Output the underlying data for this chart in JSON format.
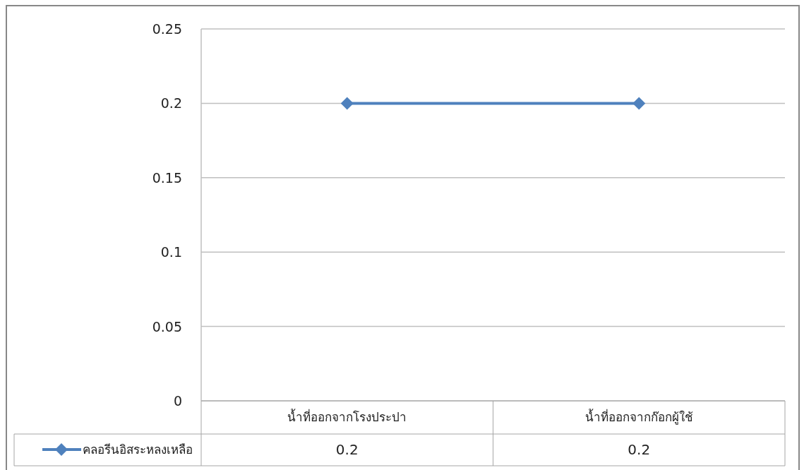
{
  "chart_data": {
    "type": "line",
    "categories": [
      "น้ำที่ออกจากโรงประปา",
      "น้ำที่ออกจากก๊อกผู้ใช้"
    ],
    "series": [
      {
        "name": "คลอรีนอิสระหลงเหลือ",
        "color": "#4f81bd",
        "values": [
          0.2,
          0.2
        ]
      }
    ],
    "ylim": [
      0,
      0.25
    ],
    "yticks": [
      0,
      0.05,
      0.1,
      0.15,
      0.2,
      0.25
    ],
    "grid": "y",
    "legend": "bottom left",
    "marker": "diamond",
    "line_style": "solid",
    "data_labels": true
  }
}
